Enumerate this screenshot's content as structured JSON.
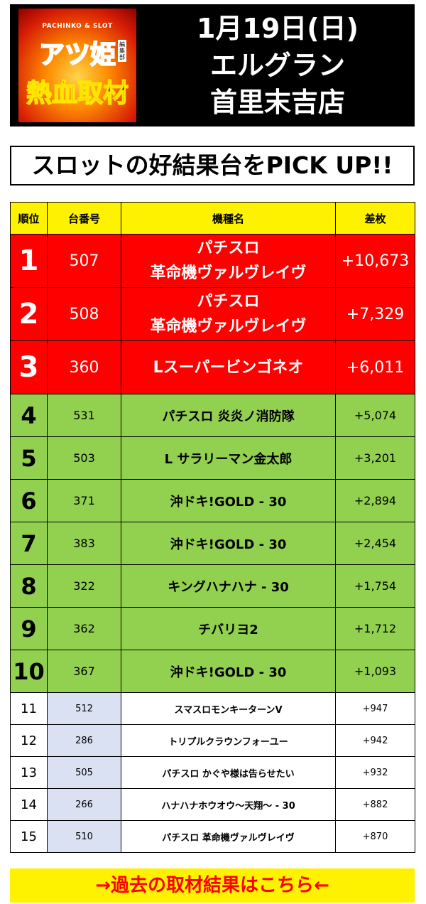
{
  "header": {
    "logo": {
      "top": "PACHINKO & SLOT",
      "title": "アツ姫",
      "tag": "編集部",
      "sub": "熱血取材"
    },
    "lines": [
      "1月19日(日)",
      "エルグラン",
      "首里末吉店"
    ]
  },
  "banner": "スロットの好結果台をPICK UP!!",
  "table": {
    "headers": [
      "順位",
      "台番号",
      "機種名",
      "差枚"
    ],
    "rows": [
      {
        "rank": "1",
        "no": "507",
        "name1": "パチスロ",
        "name2": "革命機ヴァルヴレイヴ",
        "diff": "+10,673"
      },
      {
        "rank": "2",
        "no": "508",
        "name1": "パチスロ",
        "name2": "革命機ヴァルヴレイヴ",
        "diff": "+7,329"
      },
      {
        "rank": "3",
        "no": "360",
        "name1": "Lスーパービンゴネオ",
        "name2": "",
        "diff": "+6,011"
      },
      {
        "rank": "4",
        "no": "531",
        "name": "パチスロ 炎炎ノ消防隊",
        "diff": "+5,074"
      },
      {
        "rank": "5",
        "no": "503",
        "name": "L サラリーマン金太郎",
        "diff": "+3,201"
      },
      {
        "rank": "6",
        "no": "371",
        "name": "沖ドキ!GOLD - 30",
        "diff": "+2,894"
      },
      {
        "rank": "7",
        "no": "383",
        "name": "沖ドキ!GOLD - 30",
        "diff": "+2,454"
      },
      {
        "rank": "8",
        "no": "322",
        "name": "キングハナハナ - 30",
        "diff": "+1,754"
      },
      {
        "rank": "9",
        "no": "362",
        "name": "チバリヨ2",
        "diff": "+1,712"
      },
      {
        "rank": "10",
        "no": "367",
        "name": "沖ドキ!GOLD - 30",
        "diff": "+1,093"
      },
      {
        "rank": "11",
        "no": "512",
        "name": "スマスロモンキーターンV",
        "diff": "+947"
      },
      {
        "rank": "12",
        "no": "286",
        "name": "トリプルクラウンフォーユー",
        "diff": "+942"
      },
      {
        "rank": "13",
        "no": "505",
        "name": "パチスロ かぐや様は告らせたい",
        "diff": "+932"
      },
      {
        "rank": "14",
        "no": "266",
        "name": "ハナハナホウオウ～天翔～ - 30",
        "diff": "+882"
      },
      {
        "rank": "15",
        "no": "510",
        "name": "パチスロ 革命機ヴァルヴレイヴ",
        "diff": "+870"
      }
    ]
  },
  "footer": "→過去の取材結果はこちら←"
}
